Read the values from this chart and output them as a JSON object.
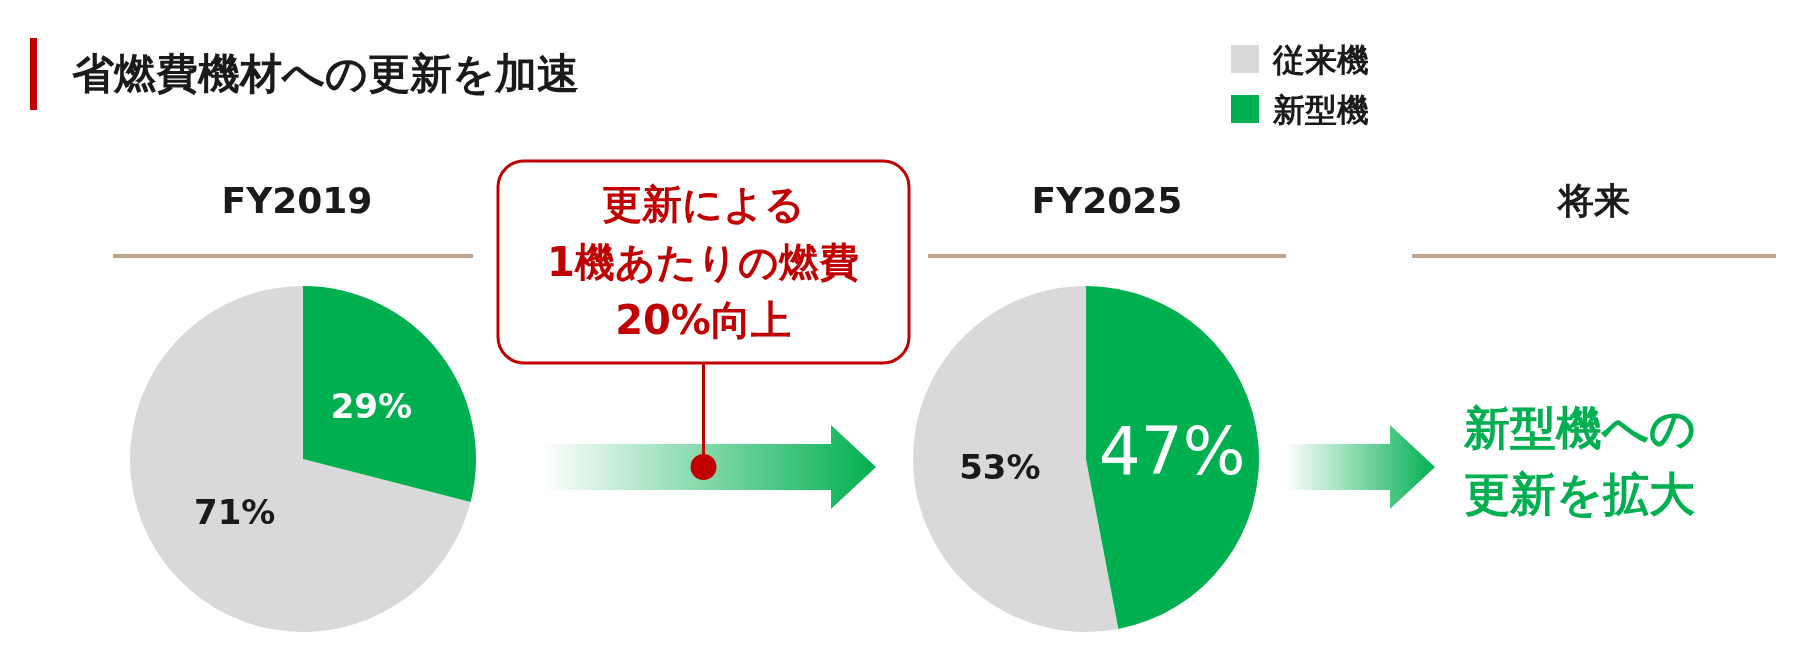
{
  "chart_data": [
    {
      "type": "other",
      "title": "省燃費機材への更新を加速",
      "annotations": [
        "更新による\n1機あたりの燃費\n20%向上"
      ]
    },
    {
      "type": "pie",
      "title": "FY2019",
      "categories": [
        "従来機",
        "新型機"
      ],
      "values": [
        71,
        29
      ],
      "colors": [
        "#d9d9d9",
        "#00b050"
      ],
      "value_labels": [
        "71%",
        "29%"
      ],
      "legend": "top right"
    },
    {
      "type": "pie",
      "title": "FY2025",
      "categories": [
        null,
        null
      ],
      "values": [
        53,
        47
      ],
      "colors": [
        "#d9d9d9",
        "#00b050"
      ],
      "value_labels": [
        "53%",
        "47%"
      ]
    },
    {
      "type": "other",
      "title": "将来",
      "annotations": [
        "新型機への更新を拡大"
      ]
    }
  ]
}
